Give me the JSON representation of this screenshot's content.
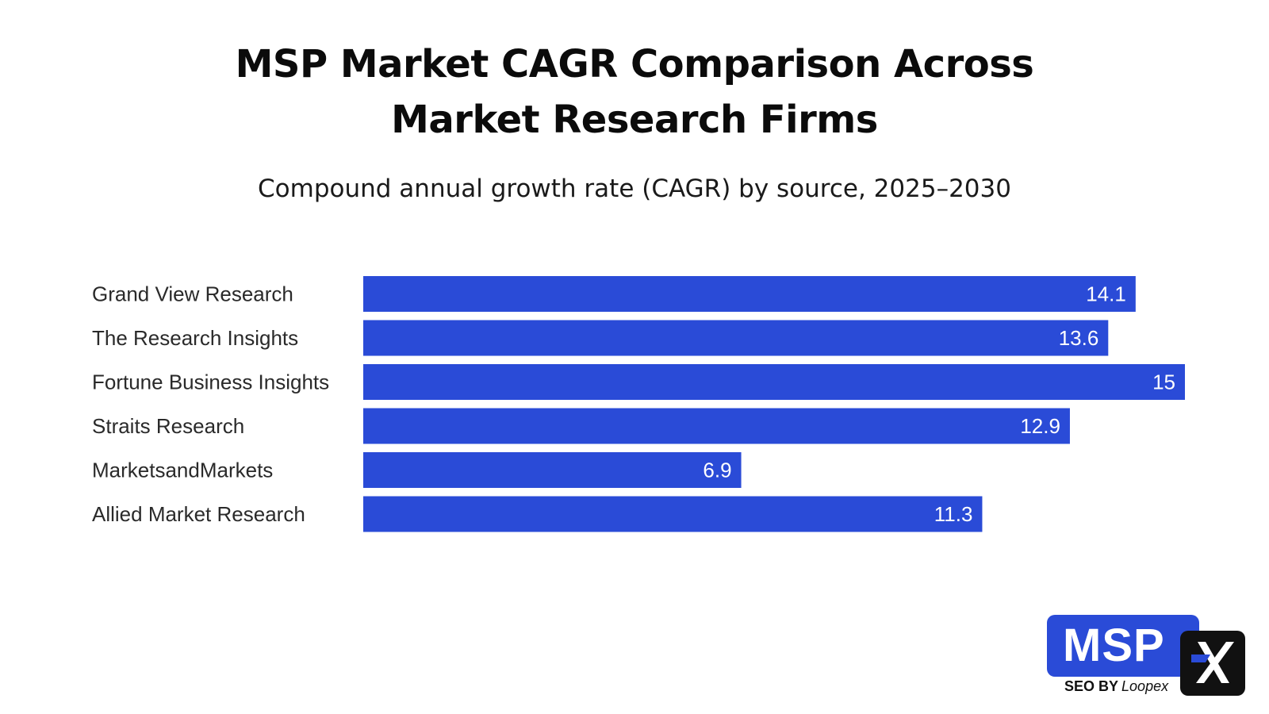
{
  "chart_data": {
    "type": "bar",
    "orientation": "horizontal",
    "title": "MSP Market CAGR Comparison Across Market Research Firms",
    "subtitle": "Compound annual growth rate (CAGR) by source, 2025–2030",
    "categories": [
      "Grand View Research",
      "The Research Insights",
      "Fortune Business Insights",
      "Straits Research",
      "MarketsandMarkets",
      "Allied Market Research"
    ],
    "values": [
      14.1,
      13.6,
      15,
      12.9,
      6.9,
      11.3
    ],
    "value_labels": [
      "14.1",
      "13.6",
      "15",
      "12.9",
      "6.9",
      "11.3"
    ],
    "xlim": [
      0,
      15
    ],
    "xlabel": "",
    "ylabel": "",
    "grid": false,
    "legend": "none",
    "bar_color": "#2a4bd7"
  },
  "title_lines": [
    "MSP Market CAGR Comparison Across",
    "Market Research Firms"
  ],
  "logo": {
    "wordmark": "MSP",
    "tagline": "SEO BY",
    "brand": "Loopex",
    "colors": {
      "box": "#2a4bd7",
      "mark": "#111111",
      "mark_accent": "#2a4bd7"
    }
  }
}
